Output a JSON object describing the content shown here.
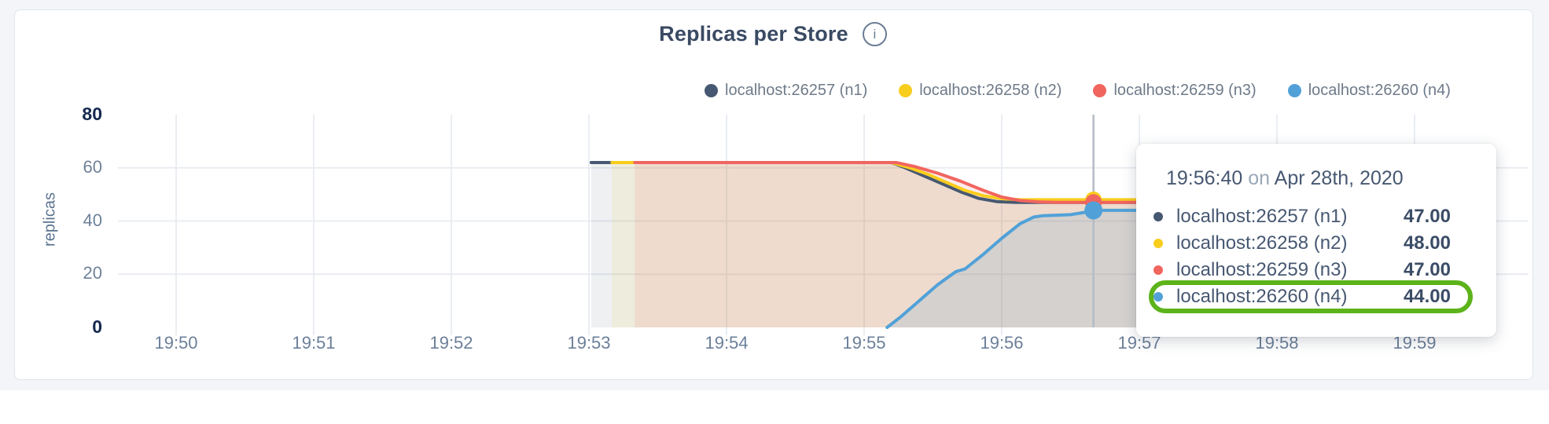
{
  "header": {
    "title": "Replicas per Store",
    "info_icon": "i"
  },
  "legend": {
    "items": [
      {
        "label": "localhost:26257 (n1)",
        "color": "#475872"
      },
      {
        "label": "localhost:26258 (n2)",
        "color": "#f8cd1c"
      },
      {
        "label": "localhost:26259 (n3)",
        "color": "#f1655f"
      },
      {
        "label": "localhost:26260 (n4)",
        "color": "#51a1d8"
      }
    ]
  },
  "axes": {
    "y": {
      "label": "replicas",
      "ticks": [
        80,
        60,
        40,
        20,
        0
      ],
      "bold_ticks": [
        80,
        0
      ]
    },
    "x": {
      "ticks": [
        "19:50",
        "19:51",
        "19:52",
        "19:53",
        "19:54",
        "19:55",
        "19:56",
        "19:57",
        "19:58",
        "19:59"
      ]
    }
  },
  "tooltip": {
    "time": "19:56:40",
    "preposition": "on",
    "date": "Apr 28th, 2020",
    "rows": [
      {
        "label": "localhost:26257 (n1)",
        "value": "47.00",
        "color": "#475872"
      },
      {
        "label": "localhost:26258 (n2)",
        "value": "48.00",
        "color": "#f8cd1c"
      },
      {
        "label": "localhost:26259 (n3)",
        "value": "47.00",
        "color": "#f1655f"
      },
      {
        "label": "localhost:26260 (n4)",
        "value": "44.00",
        "color": "#51a1d8"
      }
    ],
    "highlight_row_index": 3,
    "highlight_color": "#5cb31a"
  },
  "chart_data": {
    "type": "area",
    "title": "Replicas per Store",
    "ylabel": "replicas",
    "ylim": [
      0,
      80
    ],
    "y_ticks": [
      0,
      20,
      40,
      60,
      80
    ],
    "x_ticks": [
      "19:50",
      "19:51",
      "19:52",
      "19:53",
      "19:54",
      "19:55",
      "19:56",
      "19:57",
      "19:58",
      "19:59"
    ],
    "x_unit": "seconds after 19:50:00",
    "x_tick_interval_seconds": 60,
    "grid": true,
    "legend_position": "top-right",
    "gridline_color": "#e7ebf1",
    "hover_line_color": "#b4bbc5",
    "hover": {
      "t": 400,
      "time": "19:56:40",
      "date": "Apr 28th, 2020",
      "values": [
        47,
        48,
        47,
        44
      ]
    },
    "series": [
      {
        "name": "localhost:26257 (n1)",
        "color": "#475872",
        "fill_opacity": 0.09,
        "dot_radius": 10.5,
        "points": [
          [
            181,
            62
          ],
          [
            312,
            62
          ],
          [
            318,
            60
          ],
          [
            326,
            57
          ],
          [
            334,
            54
          ],
          [
            342,
            51
          ],
          [
            350,
            48.5
          ],
          [
            358,
            47.3
          ],
          [
            366,
            47
          ],
          [
            500,
            47
          ]
        ]
      },
      {
        "name": "localhost:26258 (n2)",
        "color": "#f8cd1c",
        "fill_opacity": 0.1,
        "dot_radius": 10.5,
        "points": [
          [
            190,
            62
          ],
          [
            312,
            62
          ],
          [
            320,
            60
          ],
          [
            328,
            57.5
          ],
          [
            336,
            54.5
          ],
          [
            344,
            51.5
          ],
          [
            352,
            49.5
          ],
          [
            360,
            48.4
          ],
          [
            368,
            48
          ],
          [
            500,
            48
          ]
        ]
      },
      {
        "name": "localhost:26259 (n3)",
        "color": "#f1655f",
        "fill_opacity": 0.12,
        "dot_radius": 10.5,
        "points": [
          [
            200,
            62
          ],
          [
            314,
            62
          ],
          [
            322,
            60.5
          ],
          [
            332,
            58
          ],
          [
            342,
            55
          ],
          [
            352,
            51.5
          ],
          [
            360,
            49
          ],
          [
            368,
            47.7
          ],
          [
            376,
            47.2
          ],
          [
            384,
            47
          ],
          [
            500,
            47
          ]
        ]
      },
      {
        "name": "localhost:26260 (n4)",
        "color": "#51a1d8",
        "fill_opacity": 0.16,
        "dot_radius": 11.5,
        "points": [
          [
            310,
            0
          ],
          [
            316,
            4
          ],
          [
            324,
            10
          ],
          [
            332,
            16
          ],
          [
            340,
            21
          ],
          [
            344,
            22
          ],
          [
            352,
            27.5
          ],
          [
            360,
            33.5
          ],
          [
            368,
            39
          ],
          [
            374,
            41.5
          ],
          [
            378,
            42
          ],
          [
            390,
            42.4
          ],
          [
            398,
            43.5
          ],
          [
            404,
            44
          ],
          [
            500,
            44
          ]
        ]
      }
    ]
  }
}
